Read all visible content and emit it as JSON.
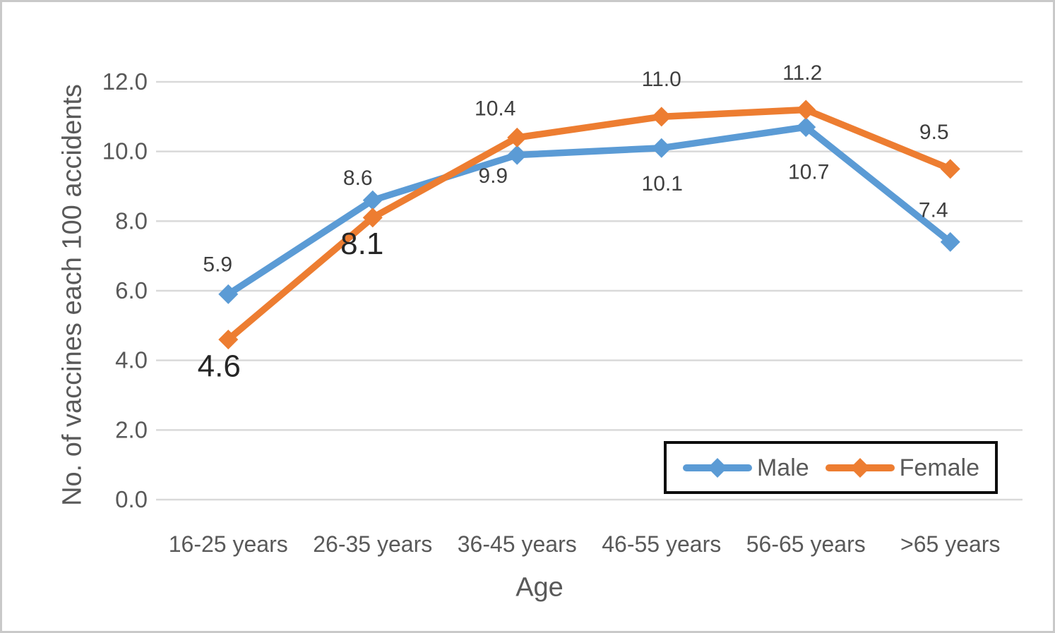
{
  "chart_data": {
    "type": "line",
    "title": "",
    "xlabel": "Age",
    "ylabel": "No. of vaccines each 100 accidents",
    "categories": [
      "16-25 years",
      "26-35 years",
      "36-45 years",
      "46-55 years",
      "56-65 years",
      ">65 years"
    ],
    "series": [
      {
        "name": "Male",
        "color": "#5B9BD5",
        "values": [
          5.9,
          8.6,
          9.9,
          10.1,
          10.7,
          7.4
        ],
        "point_labels": [
          "5.9",
          "8.6",
          "9.9",
          "10.1",
          "10.7",
          "7.4"
        ],
        "label_offsets": [
          [
            -15,
            -43
          ],
          [
            -21,
            -32
          ],
          [
            -34,
            29
          ],
          [
            1,
            50
          ],
          [
            4,
            63
          ],
          [
            -24,
            -46
          ]
        ],
        "label_sizes": [
          30,
          30,
          30,
          30,
          30,
          30
        ]
      },
      {
        "name": "Female",
        "color": "#ED7D31",
        "values": [
          4.6,
          8.1,
          10.4,
          11.0,
          11.2,
          9.5
        ],
        "point_labels": [
          "4.6",
          "8.1",
          "10.4",
          "11.0",
          "11.2",
          "9.5"
        ],
        "label_offsets": [
          [
            -13,
            37
          ],
          [
            -15,
            36
          ],
          [
            -31,
            -42
          ],
          [
            0,
            -54
          ],
          [
            -5,
            -53
          ],
          [
            -23,
            -53
          ]
        ],
        "label_sizes": [
          44,
          44,
          30,
          30,
          30,
          30
        ]
      }
    ],
    "yticks": [
      "0.0",
      "2.0",
      "4.0",
      "6.0",
      "8.0",
      "10.0",
      "12.0"
    ],
    "ylim": [
      0,
      12
    ],
    "grid": true,
    "legend_position": "bottom-right",
    "gridline_color": "#D9D9D9",
    "tick_color": "#595959",
    "data_label_color": "#3F3F3F",
    "big_label_color": "#262626",
    "marker": "diamond"
  }
}
